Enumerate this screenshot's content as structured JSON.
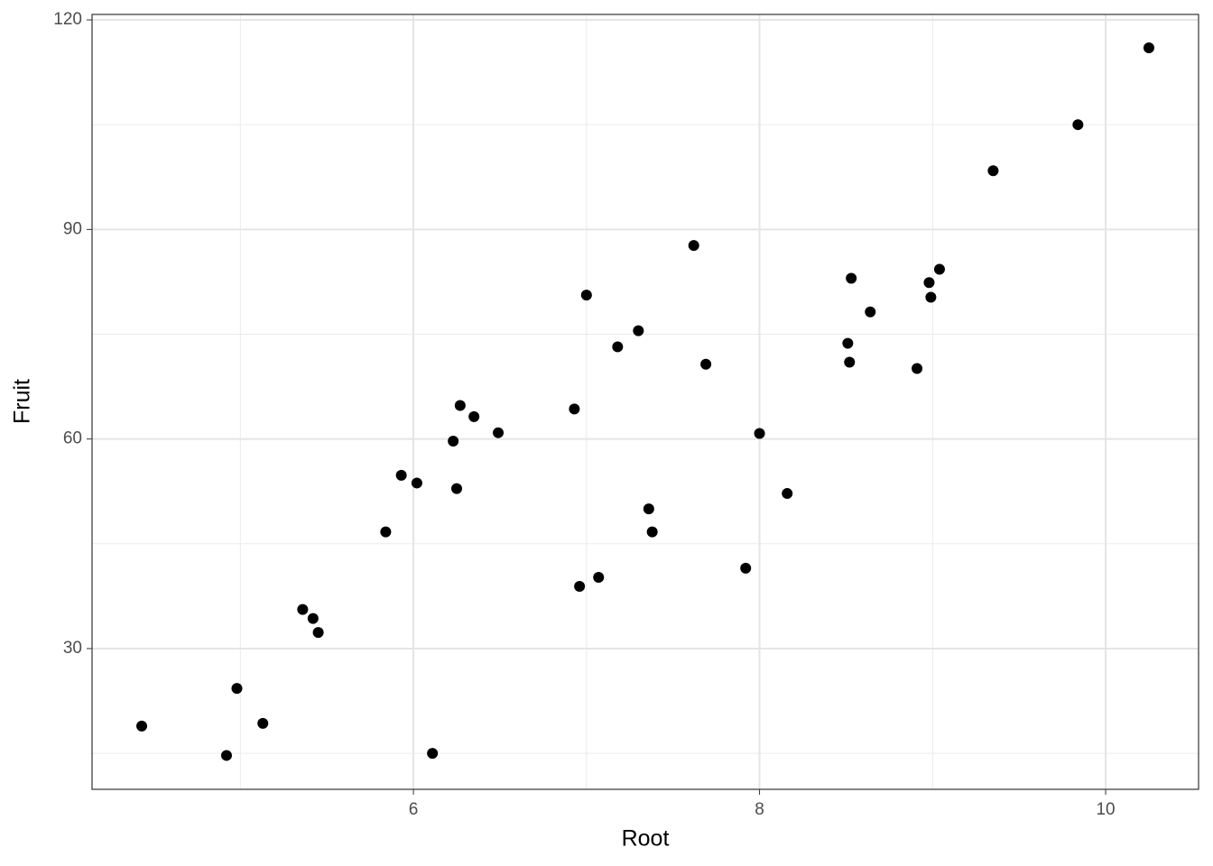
{
  "chart_data": {
    "type": "scatter",
    "x_label": "Root",
    "y_label": "Fruit",
    "color": "#000000",
    "x": [
      4.43,
      4.92,
      4.98,
      5.13,
      5.36,
      5.42,
      5.45,
      5.84,
      5.93,
      6.02,
      6.11,
      6.23,
      6.25,
      6.27,
      6.35,
      6.49,
      6.93,
      6.96,
      7.0,
      7.07,
      7.18,
      7.3,
      7.36,
      7.38,
      7.62,
      7.69,
      7.92,
      8.0,
      8.16,
      8.51,
      8.52,
      8.53,
      8.64,
      8.91,
      8.98,
      8.99,
      9.04,
      9.35,
      9.84,
      10.25
    ],
    "values": [
      18.9,
      14.7,
      24.3,
      19.3,
      35.6,
      34.3,
      32.3,
      46.7,
      54.8,
      53.7,
      15.0,
      59.7,
      52.9,
      64.8,
      63.2,
      60.9,
      64.3,
      38.9,
      80.6,
      40.2,
      73.2,
      75.5,
      50.0,
      46.7,
      87.7,
      70.7,
      41.5,
      60.8,
      52.2,
      73.7,
      71.0,
      83.0,
      78.2,
      70.1,
      82.4,
      80.3,
      84.3,
      98.4,
      105.0,
      116.0
    ],
    "xlim": [
      4.143,
      10.537
    ],
    "ylim": [
      9.85,
      120.78
    ],
    "xticks": [
      6,
      8,
      10
    ],
    "yticks": [
      30,
      60,
      90,
      120
    ],
    "x_minor_grid": [
      5,
      7,
      9
    ],
    "y_minor_grid": [
      15,
      45,
      75,
      105
    ],
    "grid": true
  }
}
